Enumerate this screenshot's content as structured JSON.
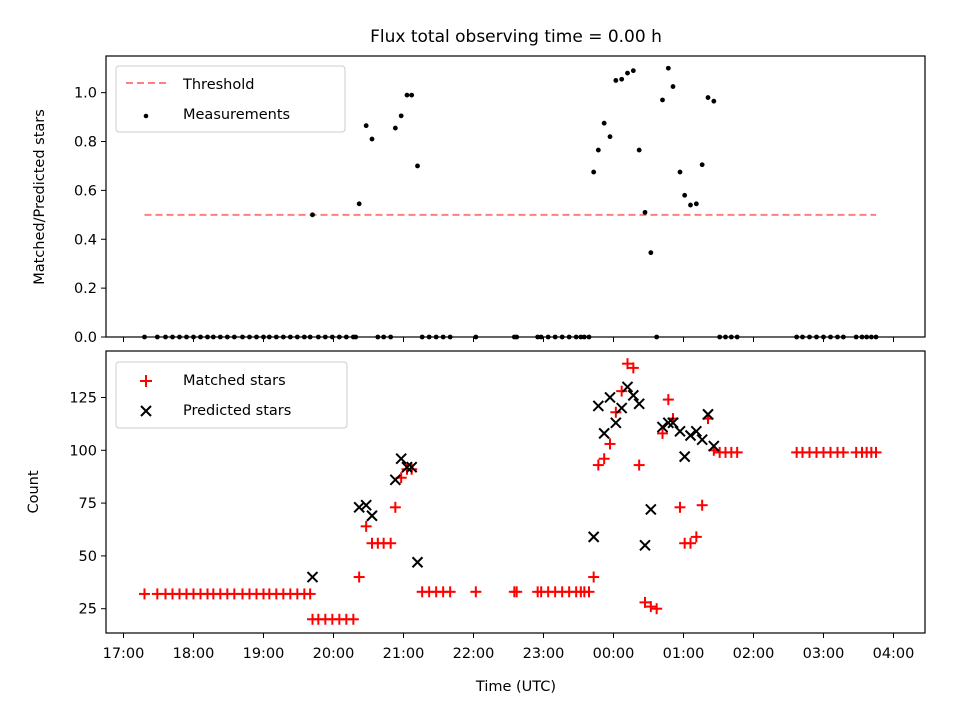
{
  "chart_data": [
    {
      "type": "scatter",
      "title": "Flux total observing time = 0.00 h",
      "xlabel": "",
      "ylabel": "Matched/Predicted stars",
      "ylim": [
        0.0,
        1.15
      ],
      "yticks": [
        0.0,
        0.2,
        0.4,
        0.6,
        0.8,
        1.0
      ],
      "ytick_labels": [
        "0.0",
        "0.2",
        "0.4",
        "0.6",
        "0.8",
        "1.0"
      ],
      "xlim_hours": [
        16.75,
        28.45
      ],
      "legend_placement": "upper-left",
      "legend": [
        "Threshold",
        "Measurements"
      ],
      "threshold": {
        "name": "Threshold",
        "value": 0.5,
        "x_start": "17:18",
        "x_end": "03:45",
        "style": "dashed",
        "color": "#ff7f7f"
      },
      "series": [
        {
          "name": "Measurements",
          "marker": "dot",
          "color": "#000000",
          "points": [
            [
              "17:18",
              0
            ],
            [
              "17:29",
              0
            ],
            [
              "17:36",
              0
            ],
            [
              "17:42",
              0
            ],
            [
              "17:48",
              0
            ],
            [
              "17:54",
              0
            ],
            [
              "18:00",
              0
            ],
            [
              "18:06",
              0
            ],
            [
              "18:12",
              0
            ],
            [
              "18:17",
              0
            ],
            [
              "18:23",
              0
            ],
            [
              "18:29",
              0
            ],
            [
              "18:35",
              0
            ],
            [
              "18:42",
              0
            ],
            [
              "18:48",
              0
            ],
            [
              "18:54",
              0
            ],
            [
              "19:00",
              0
            ],
            [
              "19:05",
              0
            ],
            [
              "19:11",
              0
            ],
            [
              "19:17",
              0
            ],
            [
              "19:23",
              0
            ],
            [
              "19:29",
              0
            ],
            [
              "19:35",
              0
            ],
            [
              "19:40",
              0
            ],
            [
              "19:42",
              0.5
            ],
            [
              "19:47",
              0
            ],
            [
              "19:53",
              0
            ],
            [
              "19:59",
              0
            ],
            [
              "20:05",
              0
            ],
            [
              "20:11",
              0
            ],
            [
              "20:17",
              0
            ],
            [
              "20:19",
              0
            ],
            [
              "20:22",
              0.545
            ],
            [
              "20:28",
              0.865
            ],
            [
              "20:33",
              0.81
            ],
            [
              "20:38",
              0
            ],
            [
              "20:43",
              0
            ],
            [
              "20:49",
              0
            ],
            [
              "20:53",
              0.855
            ],
            [
              "20:58",
              0.905
            ],
            [
              "21:03",
              0.99
            ],
            [
              "21:07",
              0.99
            ],
            [
              "21:12",
              0.7
            ],
            [
              "21:16",
              0
            ],
            [
              "21:22",
              0
            ],
            [
              "21:28",
              0
            ],
            [
              "21:34",
              0
            ],
            [
              "21:40",
              0
            ],
            [
              "22:02",
              0
            ],
            [
              "22:35",
              0
            ],
            [
              "22:37",
              0
            ],
            [
              "22:55",
              0
            ],
            [
              "22:58",
              0
            ],
            [
              "23:04",
              0
            ],
            [
              "23:10",
              0
            ],
            [
              "23:16",
              0
            ],
            [
              "23:22",
              0
            ],
            [
              "23:28",
              0
            ],
            [
              "23:32",
              0
            ],
            [
              "23:35",
              0
            ],
            [
              "23:39",
              0
            ],
            [
              "23:43",
              0.675
            ],
            [
              "23:47",
              0.765
            ],
            [
              "23:52",
              0.875
            ],
            [
              "23:57",
              0.82
            ],
            [
              "00:02",
              1.05
            ],
            [
              "00:07",
              1.055
            ],
            [
              "00:12",
              1.08
            ],
            [
              "00:17",
              1.09
            ],
            [
              "00:22",
              0.765
            ],
            [
              "00:27",
              0.51
            ],
            [
              "00:32",
              0.345
            ],
            [
              "00:37",
              0
            ],
            [
              "00:42",
              0.97
            ],
            [
              "00:47",
              1.1
            ],
            [
              "00:51",
              1.025
            ],
            [
              "00:57",
              0.675
            ],
            [
              "01:01",
              0.58
            ],
            [
              "01:06",
              0.54
            ],
            [
              "01:11",
              0.545
            ],
            [
              "01:16",
              0.705
            ],
            [
              "01:21",
              0.98
            ],
            [
              "01:26",
              0.965
            ],
            [
              "01:31",
              0
            ],
            [
              "01:36",
              0
            ],
            [
              "01:41",
              0
            ],
            [
              "01:46",
              0
            ],
            [
              "02:37",
              0
            ],
            [
              "02:42",
              0
            ],
            [
              "02:48",
              0
            ],
            [
              "02:54",
              0
            ],
            [
              "03:00",
              0
            ],
            [
              "03:06",
              0
            ],
            [
              "03:12",
              0
            ],
            [
              "03:17",
              0
            ],
            [
              "03:28",
              0
            ],
            [
              "03:33",
              0
            ],
            [
              "03:37",
              0
            ],
            [
              "03:41",
              0
            ],
            [
              "03:45",
              0
            ]
          ]
        }
      ]
    },
    {
      "type": "scatter",
      "title": "",
      "xlabel": "Time (UTC)",
      "ylabel": "Count",
      "ylim": [
        13.5,
        147
      ],
      "yticks": [
        25,
        50,
        75,
        100,
        125
      ],
      "ytick_labels": [
        "25",
        "50",
        "75",
        "100",
        "125"
      ],
      "xlim_hours": [
        16.75,
        28.45
      ],
      "xticks": [
        "17:00",
        "18:00",
        "19:00",
        "20:00",
        "21:00",
        "22:00",
        "23:00",
        "00:00",
        "01:00",
        "02:00",
        "03:00",
        "04:00"
      ],
      "legend_placement": "upper-left",
      "legend": [
        "Matched stars",
        "Predicted stars"
      ],
      "series": [
        {
          "name": "Matched stars",
          "marker": "plus",
          "color": "#ff0000",
          "points": [
            [
              "17:18",
              32
            ],
            [
              "17:29",
              32
            ],
            [
              "17:36",
              32
            ],
            [
              "17:42",
              32
            ],
            [
              "17:48",
              32
            ],
            [
              "17:54",
              32
            ],
            [
              "18:00",
              32
            ],
            [
              "18:06",
              32
            ],
            [
              "18:12",
              32
            ],
            [
              "18:17",
              32
            ],
            [
              "18:23",
              32
            ],
            [
              "18:29",
              32
            ],
            [
              "18:35",
              32
            ],
            [
              "18:42",
              32
            ],
            [
              "18:48",
              32
            ],
            [
              "18:54",
              32
            ],
            [
              "19:00",
              32
            ],
            [
              "19:05",
              32
            ],
            [
              "19:11",
              32
            ],
            [
              "19:17",
              32
            ],
            [
              "19:23",
              32
            ],
            [
              "19:29",
              32
            ],
            [
              "19:35",
              32
            ],
            [
              "19:40",
              32
            ],
            [
              "19:42",
              20
            ],
            [
              "19:47",
              20
            ],
            [
              "19:53",
              20
            ],
            [
              "19:59",
              20
            ],
            [
              "20:05",
              20
            ],
            [
              "20:11",
              20
            ],
            [
              "20:17",
              20
            ],
            [
              "20:22",
              40
            ],
            [
              "20:28",
              64
            ],
            [
              "20:33",
              56
            ],
            [
              "20:38",
              56
            ],
            [
              "20:43",
              56
            ],
            [
              "20:49",
              56
            ],
            [
              "20:53",
              73
            ],
            [
              "20:58",
              87
            ],
            [
              "21:03",
              91
            ],
            [
              "21:07",
              91
            ],
            [
              "21:16",
              33
            ],
            [
              "21:22",
              33
            ],
            [
              "21:28",
              33
            ],
            [
              "21:34",
              33
            ],
            [
              "21:40",
              33
            ],
            [
              "22:02",
              33
            ],
            [
              "22:35",
              33
            ],
            [
              "22:37",
              33
            ],
            [
              "22:55",
              33
            ],
            [
              "22:58",
              33
            ],
            [
              "23:04",
              33
            ],
            [
              "23:10",
              33
            ],
            [
              "23:16",
              33
            ],
            [
              "23:22",
              33
            ],
            [
              "23:28",
              33
            ],
            [
              "23:32",
              33
            ],
            [
              "23:35",
              33
            ],
            [
              "23:39",
              33
            ],
            [
              "23:43",
              40
            ],
            [
              "23:47",
              93
            ],
            [
              "23:52",
              96
            ],
            [
              "23:57",
              103
            ],
            [
              "00:02",
              118
            ],
            [
              "00:07",
              128
            ],
            [
              "00:12",
              141
            ],
            [
              "00:17",
              139
            ],
            [
              "00:22",
              93
            ],
            [
              "00:27",
              28
            ],
            [
              "00:32",
              26
            ],
            [
              "00:37",
              25
            ],
            [
              "00:42",
              108
            ],
            [
              "00:47",
              124
            ],
            [
              "00:51",
              115
            ],
            [
              "00:57",
              73
            ],
            [
              "01:01",
              56
            ],
            [
              "01:06",
              56
            ],
            [
              "01:11",
              59
            ],
            [
              "01:16",
              74
            ],
            [
              "01:21",
              115
            ],
            [
              "01:26",
              100
            ],
            [
              "01:31",
              99
            ],
            [
              "01:36",
              99
            ],
            [
              "01:41",
              99
            ],
            [
              "01:46",
              99
            ],
            [
              "02:37",
              99
            ],
            [
              "02:42",
              99
            ],
            [
              "02:48",
              99
            ],
            [
              "02:54",
              99
            ],
            [
              "03:00",
              99
            ],
            [
              "03:06",
              99
            ],
            [
              "03:12",
              99
            ],
            [
              "03:17",
              99
            ],
            [
              "03:28",
              99
            ],
            [
              "03:33",
              99
            ],
            [
              "03:37",
              99
            ],
            [
              "03:41",
              99
            ],
            [
              "03:45",
              99
            ]
          ]
        },
        {
          "name": "Predicted stars",
          "marker": "x",
          "color": "#000000",
          "points": [
            [
              "19:42",
              40
            ],
            [
              "20:22",
              73
            ],
            [
              "20:28",
              74
            ],
            [
              "20:33",
              69
            ],
            [
              "20:53",
              86
            ],
            [
              "20:58",
              96
            ],
            [
              "21:03",
              92
            ],
            [
              "21:07",
              92
            ],
            [
              "21:12",
              47
            ],
            [
              "23:43",
              59
            ],
            [
              "23:47",
              121
            ],
            [
              "23:52",
              108
            ],
            [
              "23:57",
              125
            ],
            [
              "00:02",
              113
            ],
            [
              "00:07",
              120
            ],
            [
              "00:12",
              130
            ],
            [
              "00:17",
              126
            ],
            [
              "00:22",
              122
            ],
            [
              "00:27",
              55
            ],
            [
              "00:32",
              72
            ],
            [
              "00:42",
              111
            ],
            [
              "00:47",
              113
            ],
            [
              "00:51",
              113
            ],
            [
              "00:57",
              109
            ],
            [
              "01:01",
              97
            ],
            [
              "01:06",
              107
            ],
            [
              "01:11",
              109
            ],
            [
              "01:16",
              105
            ],
            [
              "01:21",
              117
            ],
            [
              "01:26",
              102
            ]
          ]
        }
      ]
    }
  ]
}
